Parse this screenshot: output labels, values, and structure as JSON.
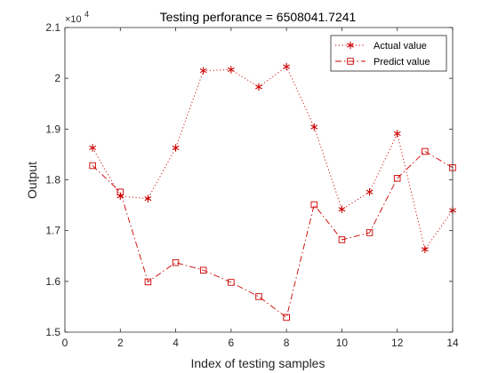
{
  "chart_data": {
    "type": "line",
    "title": "Testing perforance = 6508041.7241",
    "xlabel": "Index of testing samples",
    "ylabel": "Output",
    "xlim": [
      0,
      14
    ],
    "ylim": [
      15000,
      21000
    ],
    "x_ticks": [
      0,
      2,
      4,
      6,
      8,
      10,
      12,
      14
    ],
    "y_ticks": [
      15000,
      16000,
      17000,
      18000,
      19000,
      20000,
      21000
    ],
    "y_tick_labels": [
      "1.5",
      "1.6",
      "1.7",
      "1.8",
      "1.9",
      "2",
      "2.1"
    ],
    "y_exponent_base": "×10",
    "y_exponent_power": "4",
    "x": [
      1,
      2,
      3,
      4,
      5,
      6,
      7,
      8,
      9,
      10,
      11,
      12,
      13,
      14
    ],
    "series": [
      {
        "name": "Actual value",
        "values": [
          18630,
          17680,
          17630,
          18630,
          20150,
          20170,
          19830,
          20230,
          19040,
          17420,
          17760,
          18910,
          16630,
          17400
        ],
        "color": "#cc0000",
        "line_style": "dotted",
        "marker": "asterisk"
      },
      {
        "name": "Predict value",
        "values": [
          18280,
          17760,
          15990,
          16370,
          16220,
          15980,
          15700,
          15290,
          17510,
          16820,
          16960,
          18030,
          18560,
          18240
        ],
        "color": "#cc0000",
        "line_style": "dash-dot",
        "marker": "square"
      }
    ],
    "legend_position": "top-right",
    "grid": false
  }
}
